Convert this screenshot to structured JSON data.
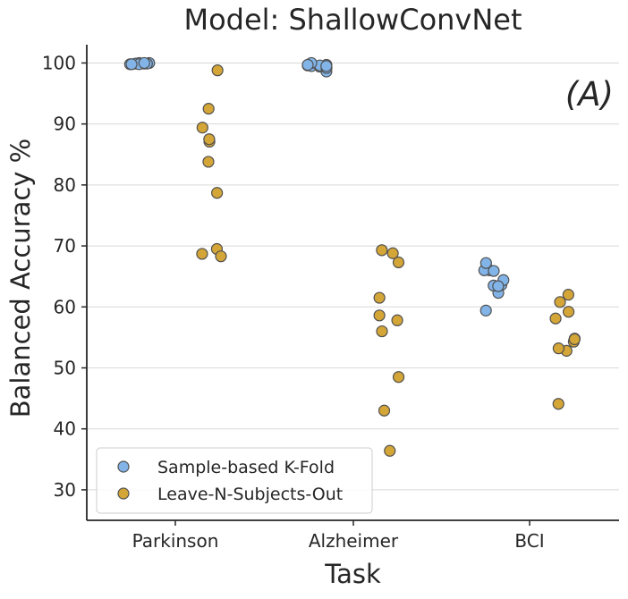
{
  "chart_data": {
    "type": "scatter",
    "title": "Model: ShallowConvNet",
    "xlabel": "Task",
    "ylabel": "Balanced Accuracy %",
    "categories": [
      "Parkinson",
      "Alzheimer",
      "BCI"
    ],
    "yticks": [
      30,
      40,
      50,
      60,
      70,
      80,
      90,
      100
    ],
    "ylim": [
      25,
      103
    ],
    "grid": "horizontal",
    "legend_position": "lower-left",
    "annotation": "(A)",
    "series": [
      {
        "name": "Sample-based K-Fold",
        "color": "#82b4e8",
        "points": [
          {
            "category": "Parkinson",
            "y": 100.0
          },
          {
            "category": "Parkinson",
            "y": 99.9
          },
          {
            "category": "Parkinson",
            "y": 99.8
          },
          {
            "category": "Parkinson",
            "y": 100.0
          },
          {
            "category": "Parkinson",
            "y": 99.8
          },
          {
            "category": "Parkinson",
            "y": 99.9
          },
          {
            "category": "Parkinson",
            "y": 99.9
          },
          {
            "category": "Parkinson",
            "y": 99.8
          },
          {
            "category": "Parkinson",
            "y": 100.0
          },
          {
            "category": "Parkinson",
            "y": 99.8
          },
          {
            "category": "Alzheimer",
            "y": 99.7
          },
          {
            "category": "Alzheimer",
            "y": 99.6
          },
          {
            "category": "Alzheimer",
            "y": 98.6
          },
          {
            "category": "Alzheimer",
            "y": 99.5
          },
          {
            "category": "Alzheimer",
            "y": 99.4
          },
          {
            "category": "Alzheimer",
            "y": 99.6
          },
          {
            "category": "Alzheimer",
            "y": 100.0
          },
          {
            "category": "Alzheimer",
            "y": 99.2
          },
          {
            "category": "Alzheimer",
            "y": 99.7
          },
          {
            "category": "Alzheimer",
            "y": 99.5
          },
          {
            "category": "BCI",
            "y": 59.4
          },
          {
            "category": "BCI",
            "y": 62.3
          },
          {
            "category": "BCI",
            "y": 63.5
          },
          {
            "category": "BCI",
            "y": 66.0
          },
          {
            "category": "BCI",
            "y": 63.6
          },
          {
            "category": "BCI",
            "y": 66.0
          },
          {
            "category": "BCI",
            "y": 64.4
          },
          {
            "category": "BCI",
            "y": 67.2
          },
          {
            "category": "BCI",
            "y": 63.4
          },
          {
            "category": "BCI",
            "y": 65.9
          }
        ]
      },
      {
        "name": "Leave-N-Subjects-Out",
        "color": "#d4a537",
        "points": [
          {
            "category": "Parkinson",
            "y": 83.8
          },
          {
            "category": "Parkinson",
            "y": 87.1
          },
          {
            "category": "Parkinson",
            "y": 69.5
          },
          {
            "category": "Parkinson",
            "y": 89.4
          },
          {
            "category": "Parkinson",
            "y": 68.3
          },
          {
            "category": "Parkinson",
            "y": 68.7
          },
          {
            "category": "Parkinson",
            "y": 98.8
          },
          {
            "category": "Parkinson",
            "y": 92.5
          },
          {
            "category": "Parkinson",
            "y": 87.5
          },
          {
            "category": "Parkinson",
            "y": 78.7
          },
          {
            "category": "Alzheimer",
            "y": 56.0
          },
          {
            "category": "Alzheimer",
            "y": 67.3
          },
          {
            "category": "Alzheimer",
            "y": 58.6
          },
          {
            "category": "Alzheimer",
            "y": 57.8
          },
          {
            "category": "Alzheimer",
            "y": 43.0
          },
          {
            "category": "Alzheimer",
            "y": 36.4
          },
          {
            "category": "Alzheimer",
            "y": 68.8
          },
          {
            "category": "Alzheimer",
            "y": 69.3
          },
          {
            "category": "Alzheimer",
            "y": 48.5
          },
          {
            "category": "Alzheimer",
            "y": 61.5
          },
          {
            "category": "BCI",
            "y": 54.8
          },
          {
            "category": "BCI",
            "y": 44.1
          },
          {
            "category": "BCI",
            "y": 59.2
          },
          {
            "category": "BCI",
            "y": 52.8
          },
          {
            "category": "BCI",
            "y": 60.8
          },
          {
            "category": "BCI",
            "y": 54.3
          },
          {
            "category": "BCI",
            "y": 58.1
          },
          {
            "category": "BCI",
            "y": 54.7
          },
          {
            "category": "BCI",
            "y": 53.2
          },
          {
            "category": "BCI",
            "y": 62.0
          }
        ]
      }
    ]
  }
}
